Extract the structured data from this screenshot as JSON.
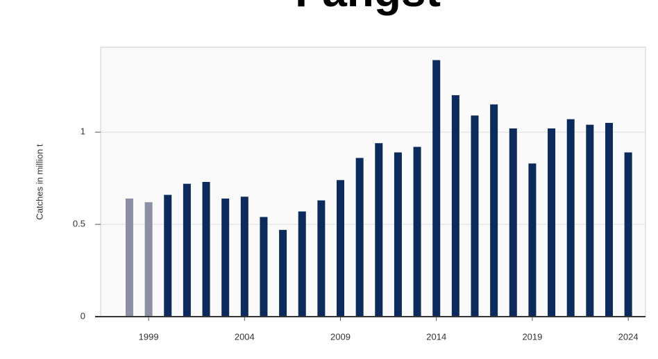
{
  "chart_data": {
    "type": "bar",
    "title": "Fangst",
    "y_label": "Catches in million t",
    "x": [
      1998,
      1999,
      2000,
      2001,
      2002,
      2003,
      2004,
      2005,
      2006,
      2007,
      2008,
      2009,
      2010,
      2011,
      2012,
      2013,
      2014,
      2015,
      2016,
      2017,
      2018,
      2019,
      2020,
      2021,
      2022,
      2023,
      2024
    ],
    "values": [
      0.64,
      0.62,
      0.66,
      0.72,
      0.73,
      0.64,
      0.65,
      0.54,
      0.47,
      0.57,
      0.63,
      0.74,
      0.86,
      0.94,
      0.89,
      0.92,
      1.39,
      1.2,
      1.09,
      1.15,
      1.02,
      0.83,
      1.02,
      1.07,
      1.04,
      1.05,
      0.89
    ],
    "colors": [
      "#8a8fa3",
      "#8a8fa3",
      "#0d2a5c",
      "#0d2a5c",
      "#0d2a5c",
      "#0d2a5c",
      "#0d2a5c",
      "#0d2a5c",
      "#0d2a5c",
      "#0d2a5c",
      "#0d2a5c",
      "#0d2a5c",
      "#0d2a5c",
      "#0d2a5c",
      "#0d2a5c",
      "#0d2a5c",
      "#0d2a5c",
      "#0d2a5c",
      "#0d2a5c",
      "#0d2a5c",
      "#0d2a5c",
      "#0d2a5c",
      "#0d2a5c",
      "#0d2a5c",
      "#0d2a5c",
      "#0d2a5c",
      "#0d2a5c"
    ],
    "xlim": [
      1996.5,
      2024.9
    ],
    "xticks": [
      1999,
      2004,
      2009,
      2014,
      2019,
      2024
    ],
    "ylim": [
      0,
      1.46
    ],
    "yticks": [
      0,
      0.5,
      1
    ],
    "grid": true
  }
}
